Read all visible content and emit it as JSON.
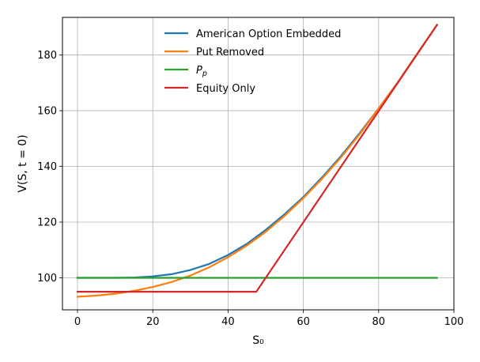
{
  "chart_data": {
    "type": "line",
    "xlabel": "S₀",
    "ylabel": "V(S, t = 0)",
    "xlim": [
      -4,
      100
    ],
    "ylim": [
      88.5,
      193.5
    ],
    "xticks": [
      0,
      20,
      40,
      60,
      80,
      100
    ],
    "yticks": [
      100,
      120,
      140,
      160,
      180
    ],
    "grid": true,
    "legend_position": "top-center",
    "series": [
      {
        "name": "American Option Embedded",
        "color": "#1f77b4",
        "x": [
          0,
          5,
          10,
          15,
          20,
          25,
          30,
          35,
          40,
          45,
          50,
          55,
          60,
          65,
          70,
          75,
          80,
          85,
          90,
          95.5
        ],
        "y": [
          100,
          100,
          100,
          100.1,
          100.5,
          101.3,
          102.8,
          105.0,
          108.2,
          112.2,
          117.2,
          122.8,
          129.0,
          136.1,
          143.7,
          152.0,
          160.8,
          170.0,
          179.9,
          190.8
        ]
      },
      {
        "name": "Put Removed",
        "color": "#ff7f0e",
        "x": [
          0,
          5,
          10,
          15,
          20,
          25,
          30,
          35,
          40,
          45,
          50,
          55,
          60,
          65,
          70,
          75,
          80,
          85,
          90,
          95.5
        ],
        "y": [
          93.2,
          93.6,
          94.3,
          95.3,
          96.7,
          98.5,
          100.8,
          103.8,
          107.4,
          111.6,
          116.5,
          122.2,
          128.6,
          135.6,
          143.2,
          151.6,
          160.8,
          170.0,
          179.9,
          190.8
        ]
      },
      {
        "name": "P_p",
        "label_base": "P",
        "label_sub": "p",
        "color": "#2ca02c",
        "x": [
          0,
          95.5
        ],
        "y": [
          100,
          100
        ]
      },
      {
        "name": "Equity Only",
        "color": "#d62728",
        "x": [
          0,
          47.5,
          95.5
        ],
        "y": [
          95.0,
          95.0,
          190.8
        ]
      }
    ]
  }
}
